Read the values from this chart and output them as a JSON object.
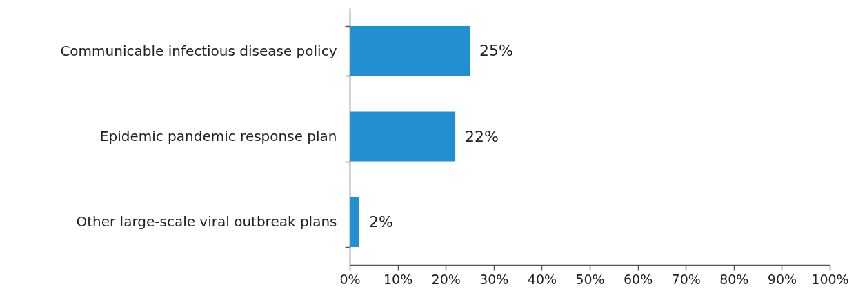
{
  "chart_data": {
    "type": "bar",
    "orientation": "horizontal",
    "categories": [
      "Communicable infectious disease policy",
      "Epidemic pandemic response plan",
      "Other large-scale viral outbreak plans"
    ],
    "values": [
      25,
      22,
      2
    ],
    "value_labels": [
      "25%",
      "22%",
      "2%"
    ],
    "color": "#2290d0",
    "xlim": [
      0,
      100
    ],
    "xticks": [
      {
        "value": 0,
        "label": "0%"
      },
      {
        "value": 10,
        "label": "10%"
      },
      {
        "value": 20,
        "label": "20%"
      },
      {
        "value": 30,
        "label": "30%"
      },
      {
        "value": 40,
        "label": "40%"
      },
      {
        "value": 50,
        "label": "50%"
      },
      {
        "value": 60,
        "label": "60%"
      },
      {
        "value": 70,
        "label": "70%"
      },
      {
        "value": 80,
        "label": "80%"
      },
      {
        "value": 90,
        "label": "90%"
      },
      {
        "value": 100,
        "label": "100%"
      }
    ],
    "grid": false
  }
}
